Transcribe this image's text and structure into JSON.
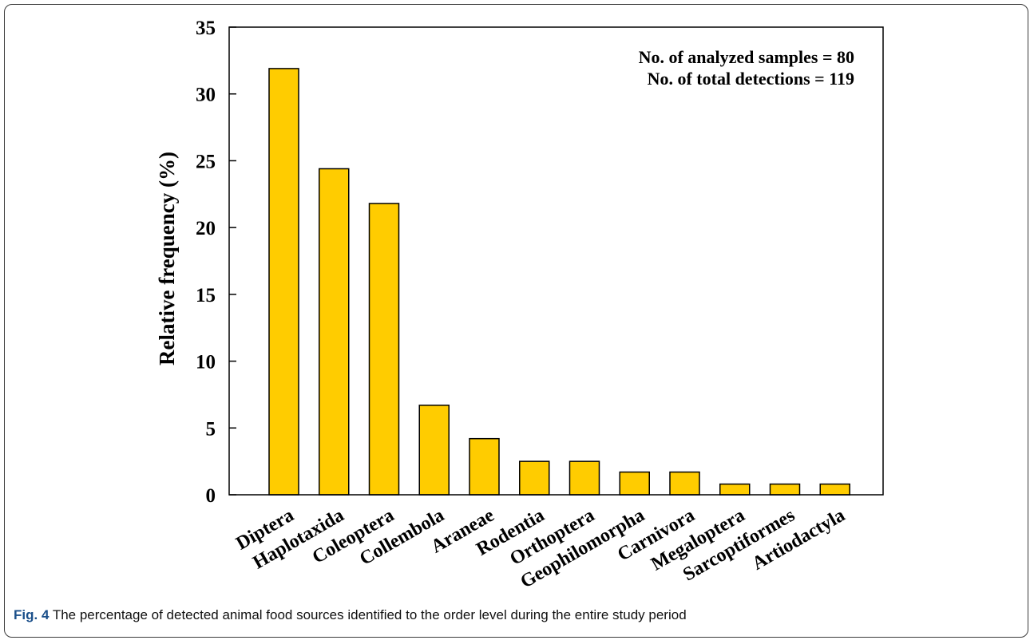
{
  "caption": {
    "figure_label": "Fig. 4",
    "text": "The percentage of detected animal food sources identified to the order level during the entire study period"
  },
  "colors": {
    "bar_fill": "#FFCC00",
    "bar_stroke": "#000000",
    "frame_border": "#3a3a3a",
    "caption_label": "#1a4f8a"
  },
  "chart_data": {
    "type": "bar",
    "title": "",
    "xlabel": "",
    "ylabel": "Relative frequency (%)",
    "ylim": [
      0,
      35
    ],
    "yticks": [
      0,
      5,
      10,
      15,
      20,
      25,
      30,
      35
    ],
    "grid": false,
    "categories": [
      "Diptera",
      "Haplotaxida",
      "Coleoptera",
      "Collembola",
      "Araneae",
      "Rodentia",
      "Orthoptera",
      "Geophilomorpha",
      "Carnivora",
      "Megaloptera",
      "Sarcoptiformes",
      "Artiodactyla"
    ],
    "values": [
      31.9,
      24.4,
      21.8,
      6.7,
      4.2,
      2.5,
      2.5,
      1.7,
      1.7,
      0.8,
      0.8,
      0.8
    ],
    "annotations": [
      "No. of analyzed samples = 80",
      "No. of total detections = 119"
    ],
    "annotation_placement": "top-right"
  }
}
